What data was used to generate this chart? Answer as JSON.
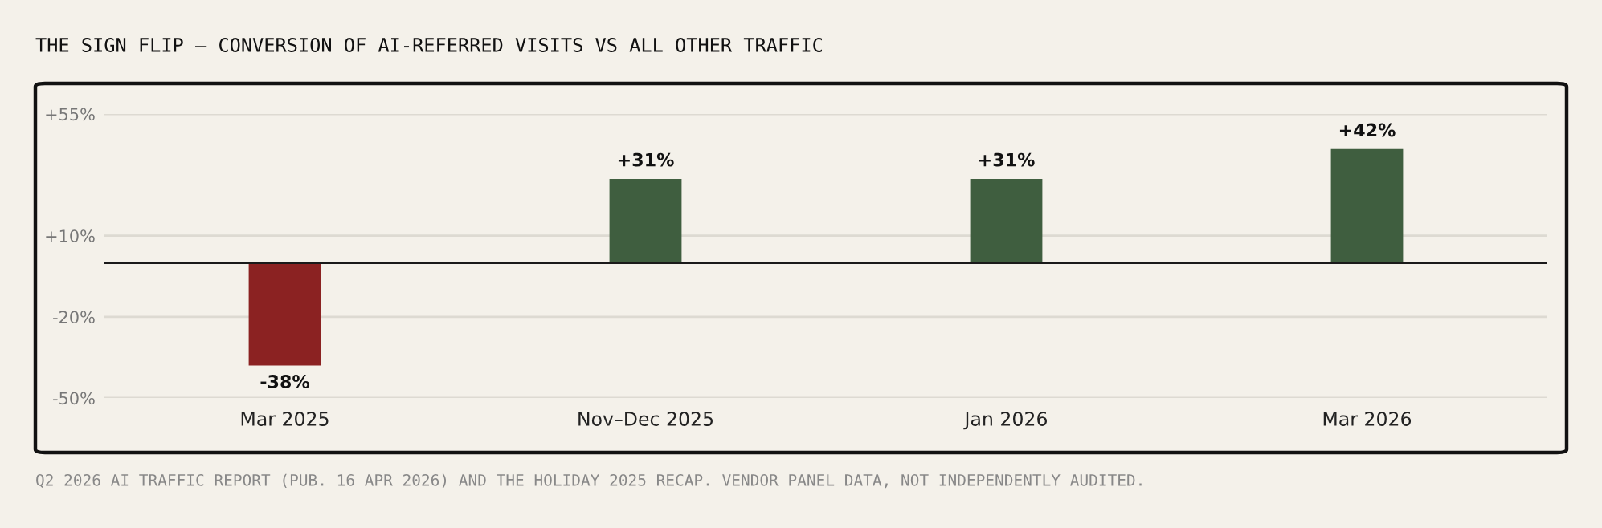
{
  "chart_data": {
    "type": "bar",
    "title": "THE SIGN FLIP — CONVERSION OF AI-REFERRED VISITS VS ALL OTHER TRAFFIC",
    "categories": [
      "Mar 2025",
      "Nov–Dec 2025",
      "Jan 2026",
      "Mar 2026"
    ],
    "values": [
      -38,
      31,
      31,
      42
    ],
    "colors": [
      "#8b2222",
      "#3f5e3f",
      "#3f5e3f",
      "#3f5e3f"
    ],
    "value_labels": [
      "-38%",
      "+31%",
      "+31%",
      "+42%"
    ],
    "ylim": [
      -50,
      55
    ],
    "yticks": [
      {
        "value": 55,
        "label": "+55%"
      },
      {
        "value": 10,
        "label": "+10%"
      },
      {
        "value": -20,
        "label": "-20%"
      },
      {
        "value": -50,
        "label": "-50%"
      }
    ],
    "grid": "y",
    "ref_lines": [
      {
        "axis": "y",
        "value": 0,
        "color": "#1a1a1a"
      }
    ],
    "annotations": [
      "Q2 2026 AI TRAFFIC REPORT (PUB. 16 APR 2026) AND THE HOLIDAY 2025 RECAP. VENDOR PANEL DATA, NOT INDEPENDENTLY AUDITED."
    ]
  }
}
